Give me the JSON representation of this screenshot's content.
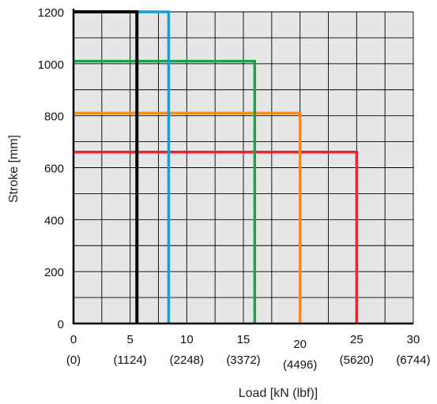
{
  "chart_data": {
    "type": "line",
    "title": "",
    "xlabel": "Load [kN (lbf)]",
    "ylabel": "Stroke [mm]",
    "xlim": [
      0,
      30
    ],
    "ylim": [
      0,
      1200
    ],
    "grid": true,
    "grid_background": "#e6e6e6",
    "x_ticks": [
      {
        "value": 0,
        "label": "0",
        "sublabel": "(0)"
      },
      {
        "value": 5,
        "label": "5",
        "sublabel": "(1124)"
      },
      {
        "value": 10,
        "label": "10",
        "sublabel": "(2248)"
      },
      {
        "value": 15,
        "label": "15",
        "sublabel": "(3372)"
      },
      {
        "value": 20,
        "label": "20",
        "sublabel": "(4496)"
      },
      {
        "value": 25,
        "label": "25",
        "sublabel": "(5620)"
      },
      {
        "value": 30,
        "label": "30",
        "sublabel": "(6744)"
      }
    ],
    "y_ticks": [
      {
        "value": 0,
        "label": "0"
      },
      {
        "value": 200,
        "label": "200"
      },
      {
        "value": 400,
        "label": "400"
      },
      {
        "value": 600,
        "label": "600"
      },
      {
        "value": 800,
        "label": "800"
      },
      {
        "value": 1000,
        "label": "1000"
      },
      {
        "value": 1200,
        "label": "1200"
      }
    ],
    "series": [
      {
        "color": "#e8262c",
        "x": [
          0,
          25,
          25
        ],
        "y": [
          660,
          660,
          0
        ]
      },
      {
        "color": "#f6891f",
        "x": [
          0,
          20,
          20
        ],
        "y": [
          810,
          810,
          0
        ]
      },
      {
        "color": "#16a44a",
        "x": [
          0,
          16,
          16
        ],
        "y": [
          1010,
          1010,
          0
        ]
      },
      {
        "color": "#1a9ad9",
        "x": [
          0,
          8.4,
          8.4
        ],
        "y": [
          1200,
          1200,
          0
        ]
      },
      {
        "color": "#000000",
        "x": [
          0,
          5.6,
          5.6
        ],
        "y": [
          1200,
          1200,
          0
        ]
      }
    ]
  }
}
